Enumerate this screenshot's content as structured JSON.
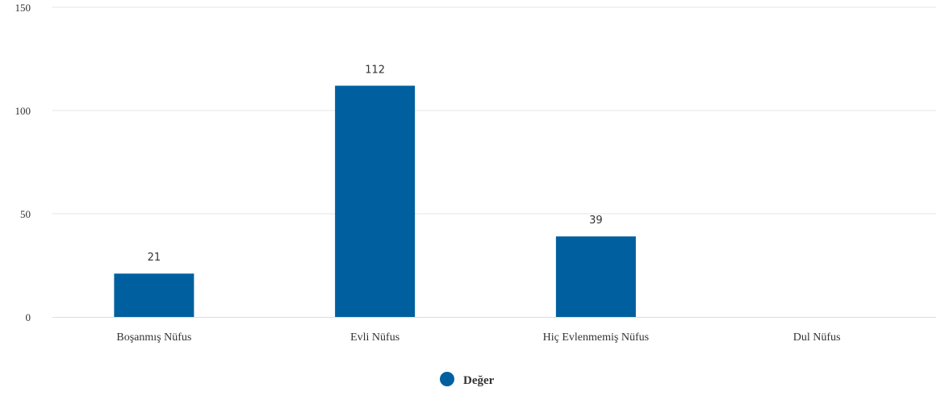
{
  "chart_data": {
    "type": "bar",
    "categories": [
      "Boşanmış Nüfus",
      "Evli Nüfus",
      "Hiç Evlenmemiş Nüfus",
      "Dul Nüfus"
    ],
    "series": [
      {
        "name": "Değer",
        "values": [
          21,
          112,
          39,
          0
        ],
        "data_labels": [
          "21",
          "112",
          "39",
          ""
        ],
        "color": "#00609f"
      }
    ],
    "ylim": [
      0,
      150
    ],
    "yticks": [
      0,
      50,
      100,
      150
    ],
    "ytick_labels": [
      "0",
      "50",
      "100",
      "150"
    ],
    "grid": true,
    "legend": "bottom-center"
  }
}
